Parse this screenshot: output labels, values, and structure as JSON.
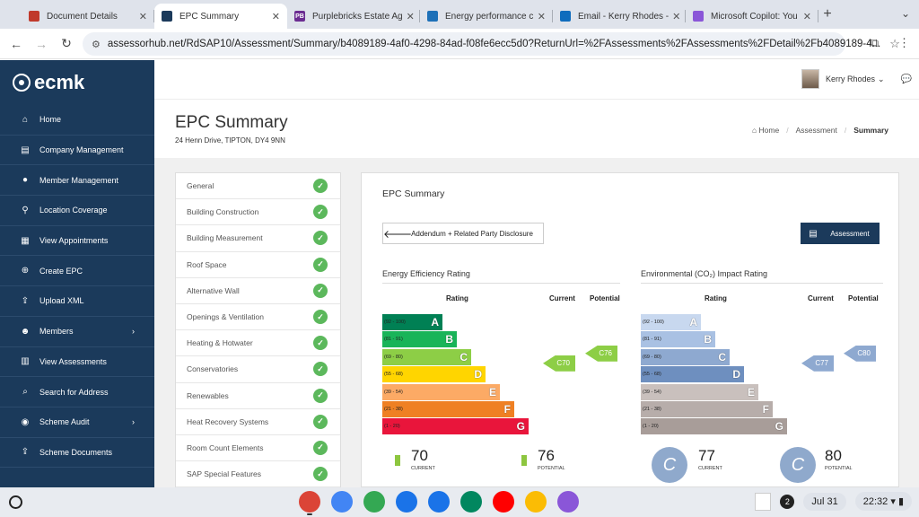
{
  "browser": {
    "tabs": [
      {
        "title": "Document Details",
        "fav_color": "#c0392b",
        "fav_text": "",
        "active": false
      },
      {
        "title": "EPC Summary",
        "fav_color": "#1b3a5b",
        "fav_text": "",
        "active": true
      },
      {
        "title": "Purplebricks Estate Ag",
        "fav_color": "#6b2c91",
        "fav_text": "PB",
        "active": false
      },
      {
        "title": "Energy performance c",
        "fav_color": "#1d70b8",
        "fav_text": "",
        "active": false
      },
      {
        "title": "Email - Kerry Rhodes -",
        "fav_color": "#0f6cbd",
        "fav_text": "",
        "active": false
      },
      {
        "title": "Microsoft Copilot: You",
        "fav_color": "#8a56d8",
        "fav_text": "",
        "active": false
      }
    ],
    "url": "assessorhub.net/RdSAP10/Assessment/Summary/b4089189-4af0-4298-84ad-f08fe6ecc5d0?ReturnUrl=%2FAssessments%2FAssessments%2FDetail%2Fb4089189-4..."
  },
  "app": {
    "logo": "ecmk",
    "user_name": "Kerry Rhodes",
    "nav": [
      {
        "label": "Home",
        "icon": "⌂",
        "name": "home-icon"
      },
      {
        "label": "Company Management",
        "icon": "▤",
        "name": "building-icon"
      },
      {
        "label": "Member Management",
        "icon": "●",
        "name": "user-icon"
      },
      {
        "label": "Location Coverage",
        "icon": "⚲",
        "name": "map-pin-icon"
      },
      {
        "label": "View Appointments",
        "icon": "▦",
        "name": "calendar-icon"
      },
      {
        "label": "Create EPC",
        "icon": "⊕",
        "name": "plus-circle-icon"
      },
      {
        "label": "Upload XML",
        "icon": "⇪",
        "name": "upload-icon"
      },
      {
        "label": "Members",
        "icon": "☻",
        "name": "users-icon",
        "chevron": true
      },
      {
        "label": "View Assessments",
        "icon": "▥",
        "name": "document-icon"
      },
      {
        "label": "Search for Address",
        "icon": "⌕",
        "name": "search-icon"
      },
      {
        "label": "Scheme Audit",
        "icon": "◉",
        "name": "eye-icon",
        "chevron": true
      },
      {
        "label": "Scheme Documents",
        "icon": "⇪",
        "name": "upload-docs-icon"
      }
    ]
  },
  "page": {
    "title": "EPC Summary",
    "address": "24 Henn Drive, TIPTON, DY4 9NN",
    "breadcrumb": {
      "home": "Home",
      "mid": "Assessment",
      "current": "Summary"
    }
  },
  "steps": [
    "General",
    "Building Construction",
    "Building Measurement",
    "Roof Space",
    "Alternative Wall",
    "Openings & Ventilation",
    "Heating & Hotwater",
    "Conservatories",
    "Renewables",
    "Heat Recovery Systems",
    "Room Count Elements",
    "SAP Special Features"
  ],
  "summary": {
    "title": "EPC Summary",
    "back_label": "Addendum + Related Party Disclosure",
    "assessment_label": "Assessment",
    "col_rating": "Rating",
    "col_current": "Current",
    "col_potential": "Potential",
    "current_caption": "CURRENT",
    "potential_caption": "POTENTIAL"
  },
  "energy": {
    "title": "Energy Efficiency Rating",
    "bands": [
      {
        "range": "(92 - 100)",
        "letter": "A",
        "color": "#008054"
      },
      {
        "range": "(81 - 91)",
        "letter": "B",
        "color": "#19b459"
      },
      {
        "range": "(69 - 80)",
        "letter": "C",
        "color": "#8dce46"
      },
      {
        "range": "(55 - 68)",
        "letter": "D",
        "color": "#ffd500"
      },
      {
        "range": "(39 - 54)",
        "letter": "E",
        "color": "#fcaa65"
      },
      {
        "range": "(21 - 38)",
        "letter": "F",
        "color": "#ef8023"
      },
      {
        "range": "(1 - 20)",
        "letter": "G",
        "color": "#e9153b"
      }
    ],
    "current": {
      "label": "C70",
      "value": "70",
      "band": 2
    },
    "potential": {
      "label": "C76",
      "value": "76",
      "band": 2
    },
    "arrow_color": "#8dce46"
  },
  "environment": {
    "title": "Environmental (CO₂) Impact Rating",
    "bands": [
      {
        "range": "(92 - 100)",
        "letter": "A",
        "color": "#c8d8ef"
      },
      {
        "range": "(81 - 91)",
        "letter": "B",
        "color": "#a9c1e3"
      },
      {
        "range": "(69 - 80)",
        "letter": "C",
        "color": "#8ea9d0"
      },
      {
        "range": "(55 - 68)",
        "letter": "D",
        "color": "#6e8fbf"
      },
      {
        "range": "(39 - 54)",
        "letter": "E",
        "color": "#c9c0bd"
      },
      {
        "range": "(21 - 38)",
        "letter": "F",
        "color": "#b7adaa"
      },
      {
        "range": "(1 - 20)",
        "letter": "G",
        "color": "#a89d99"
      }
    ],
    "current": {
      "label": "C77",
      "value": "77",
      "band": 2
    },
    "potential": {
      "label": "C80",
      "value": "80",
      "band": 2
    },
    "arrow_color": "#8ea9d0",
    "circle_letter": "C"
  },
  "shelf": {
    "apps": [
      {
        "name": "chrome-icon",
        "color": "#db4437",
        "running": true
      },
      {
        "name": "gemini-icon",
        "color": "#4285f4",
        "running": false
      },
      {
        "name": "app-launcher-icon",
        "color": "#34a853",
        "running": false
      },
      {
        "name": "files-icon",
        "color": "#1a73e8",
        "running": false
      },
      {
        "name": "messages-icon",
        "color": "#1a73e8",
        "running": false
      },
      {
        "name": "play-store-icon",
        "color": "#01875f",
        "running": false
      },
      {
        "name": "youtube-icon",
        "color": "#ff0000",
        "running": false
      },
      {
        "name": "photos-icon",
        "color": "#fbbc04",
        "running": false
      },
      {
        "name": "copilot-icon",
        "color": "#8a56d8",
        "running": false
      }
    ],
    "notif_count": "2",
    "date": "Jul 31",
    "time": "22:32"
  }
}
